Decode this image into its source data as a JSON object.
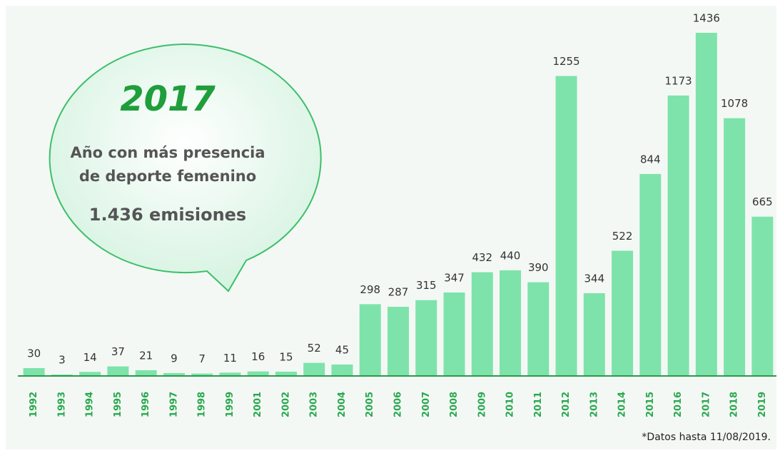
{
  "chart_data": {
    "type": "bar",
    "categories": [
      "1992",
      "1993",
      "1994",
      "1995",
      "1996",
      "1997",
      "1998",
      "1999",
      "2001",
      "2002",
      "2003",
      "2004",
      "2005",
      "2006",
      "2007",
      "2008",
      "2009",
      "2010",
      "2011",
      "2012",
      "2013",
      "2014",
      "2015",
      "2016",
      "2017",
      "2018",
      "2019"
    ],
    "values": [
      30,
      3,
      14,
      37,
      21,
      9,
      7,
      11,
      16,
      15,
      52,
      45,
      298,
      287,
      315,
      347,
      432,
      440,
      390,
      1255,
      344,
      522,
      844,
      1173,
      1436,
      1078,
      665
    ],
    "color": "#7ee3aa",
    "callout": {
      "title": "2017",
      "lines": [
        "Año con más presencia",
        "de deporte femenino"
      ],
      "highlight": "1.436 emisiones"
    },
    "note": "*Datos hasta 11/08/2019."
  }
}
